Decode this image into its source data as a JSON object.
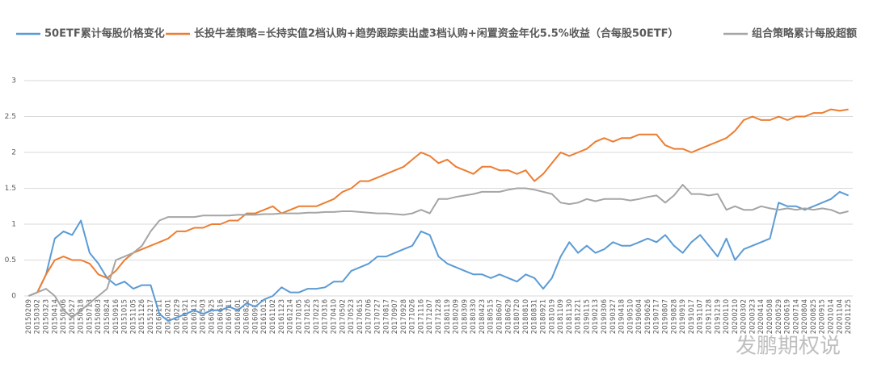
{
  "chart_data": {
    "type": "line",
    "categories": [
      "20150209",
      "20150302",
      "20150323",
      "20150414",
      "20150506",
      "20150527",
      "20150618",
      "20150713",
      "20150803",
      "20150824",
      "20150916",
      "20151015",
      "20151105",
      "20151126",
      "20151217",
      "20160111",
      "20160201",
      "20160229",
      "20160321",
      "20160412",
      "20160503",
      "20160525",
      "20160616",
      "20160711",
      "20160801",
      "20160822",
      "20160913",
      "20161013",
      "20161102",
      "20161123",
      "20161214",
      "20170105",
      "20170126",
      "20170223",
      "20170316",
      "20170410",
      "20170502",
      "20170523",
      "20170615",
      "20170706",
      "20170727",
      "20170817",
      "20170907",
      "20170928",
      "20171026",
      "20171116",
      "20171207",
      "20171228",
      "20180119",
      "20180209",
      "20180309",
      "20180330",
      "20180423",
      "20180515",
      "20180607",
      "20180629",
      "20180720",
      "20180810",
      "20180831",
      "20180921",
      "20181019",
      "20181109",
      "20181130",
      "20181221",
      "20190115",
      "20190213",
      "20190306",
      "20190327",
      "20190418",
      "20190510",
      "20190604",
      "20190626",
      "20190717",
      "20190807",
      "20190828",
      "20190919",
      "20191017",
      "20191107",
      "20191128",
      "20191219",
      "20200110",
      "20200210",
      "20200302",
      "20200323",
      "20200414",
      "20200508",
      "20200529",
      "20200619",
      "20200714",
      "20200804",
      "20200825",
      "20200915",
      "20201014",
      "20201104",
      "20201125"
    ],
    "series": [
      {
        "name": "50ETF累计每股价格变化",
        "color": "#5b9bd5",
        "values": [
          0,
          0.05,
          0.3,
          0.8,
          0.9,
          0.85,
          1.05,
          0.6,
          0.45,
          0.25,
          0.15,
          0.2,
          0.1,
          0.15,
          0.15,
          -0.25,
          -0.35,
          -0.3,
          -0.25,
          -0.2,
          -0.25,
          -0.2,
          -0.2,
          -0.15,
          -0.2,
          -0.1,
          -0.15,
          -0.05,
          0,
          0.12,
          0.05,
          0.05,
          0.1,
          0.1,
          0.12,
          0.2,
          0.2,
          0.35,
          0.4,
          0.45,
          0.55,
          0.55,
          0.6,
          0.65,
          0.7,
          0.9,
          0.85,
          0.55,
          0.45,
          0.4,
          0.35,
          0.3,
          0.3,
          0.25,
          0.3,
          0.25,
          0.2,
          0.3,
          0.25,
          0.1,
          0.25,
          0.55,
          0.75,
          0.6,
          0.7,
          0.6,
          0.65,
          0.75,
          0.7,
          0.7,
          0.75,
          0.8,
          0.75,
          0.85,
          0.7,
          0.6,
          0.75,
          0.85,
          0.7,
          0.55,
          0.8,
          0.5,
          0.65,
          0.7,
          0.75,
          0.8,
          1.3,
          1.25,
          1.25,
          1.2,
          1.25,
          1.3,
          1.35,
          1.45,
          1.4
        ]
      },
      {
        "name": "长投牛差策略=长持实值2档认购+趋势跟踪卖出虚3档认购+闲置资金年化5.5%收益（合每股50ETF）",
        "color": "#ed7d31",
        "values": [
          0,
          0.05,
          0.3,
          0.5,
          0.55,
          0.5,
          0.5,
          0.45,
          0.3,
          0.25,
          0.35,
          0.5,
          0.6,
          0.65,
          0.7,
          0.75,
          0.8,
          0.9,
          0.9,
          0.95,
          0.95,
          1.0,
          1.0,
          1.05,
          1.05,
          1.15,
          1.15,
          1.2,
          1.25,
          1.15,
          1.2,
          1.25,
          1.25,
          1.25,
          1.3,
          1.35,
          1.45,
          1.5,
          1.6,
          1.6,
          1.65,
          1.7,
          1.75,
          1.8,
          1.9,
          2.0,
          1.95,
          1.85,
          1.9,
          1.8,
          1.75,
          1.7,
          1.8,
          1.8,
          1.75,
          1.75,
          1.7,
          1.75,
          1.6,
          1.7,
          1.85,
          2.0,
          1.95,
          2.0,
          2.05,
          2.15,
          2.2,
          2.15,
          2.2,
          2.2,
          2.25,
          2.25,
          2.25,
          2.1,
          2.05,
          2.05,
          2.0,
          2.05,
          2.1,
          2.15,
          2.2,
          2.3,
          2.45,
          2.5,
          2.45,
          2.45,
          2.5,
          2.45,
          2.5,
          2.5,
          2.55,
          2.55,
          2.6,
          2.58,
          2.6
        ]
      },
      {
        "name": "组合策略累计每股超额",
        "color": "#a5a5a5",
        "values": [
          0,
          0.05,
          0.1,
          0,
          -0.2,
          -0.3,
          -0.2,
          -0.1,
          0,
          0.1,
          0.5,
          0.55,
          0.6,
          0.7,
          0.9,
          1.05,
          1.1,
          1.1,
          1.1,
          1.1,
          1.12,
          1.12,
          1.12,
          1.12,
          1.13,
          1.13,
          1.13,
          1.14,
          1.14,
          1.15,
          1.15,
          1.15,
          1.16,
          1.16,
          1.17,
          1.17,
          1.18,
          1.18,
          1.17,
          1.16,
          1.15,
          1.15,
          1.14,
          1.13,
          1.15,
          1.2,
          1.15,
          1.35,
          1.35,
          1.38,
          1.4,
          1.42,
          1.45,
          1.45,
          1.45,
          1.48,
          1.5,
          1.5,
          1.48,
          1.45,
          1.42,
          1.3,
          1.28,
          1.3,
          1.35,
          1.32,
          1.35,
          1.35,
          1.35,
          1.33,
          1.35,
          1.38,
          1.4,
          1.3,
          1.4,
          1.55,
          1.42,
          1.42,
          1.4,
          1.42,
          1.2,
          1.25,
          1.2,
          1.2,
          1.25,
          1.22,
          1.2,
          1.22,
          1.2,
          1.22,
          1.2,
          1.22,
          1.2,
          1.15,
          1.18
        ]
      }
    ],
    "ylim": [
      -0.5,
      3
    ],
    "yticks": [
      0,
      0.5,
      1,
      1.5,
      2,
      2.5,
      3
    ],
    "grid": true,
    "watermark": "发鹏期权说"
  }
}
